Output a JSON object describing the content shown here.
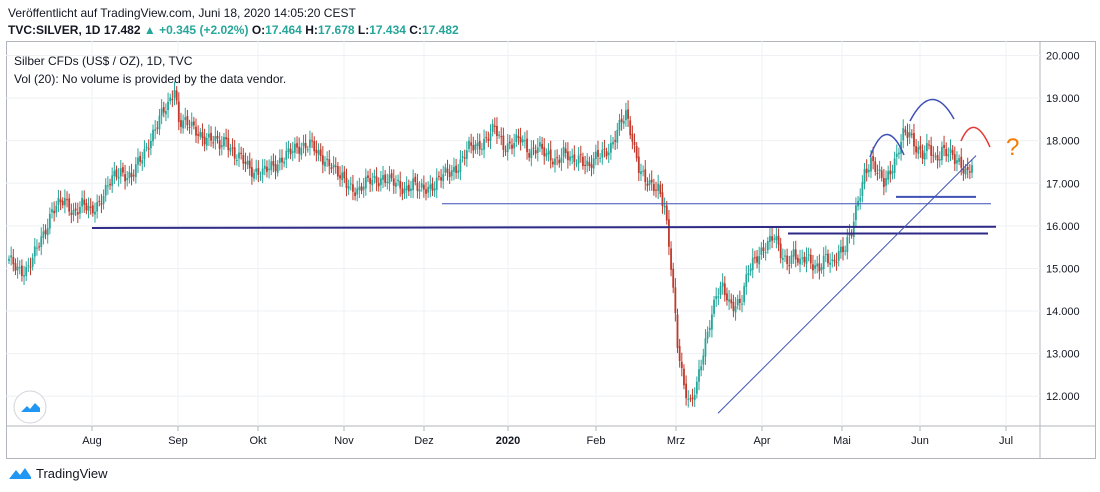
{
  "header": {
    "published": "Veröffentlicht auf TradingView.com, Juni 18, 2020 14:05:20 CEST",
    "symbol": "TVC:SILVER, 1D",
    "last": "17.482",
    "change": "▲ +0.345 (+2.02%)",
    "o_label": "O:",
    "o": "17.464",
    "h_label": "H:",
    "h": "17.678",
    "l_label": "L:",
    "l": "17.434",
    "c_label": "C:",
    "c": "17.482"
  },
  "legend": {
    "title": "Silber CFDs (US$ / OZ), 1D, TVC",
    "volume": "Vol (20): No volume is provided by the data vendor."
  },
  "annotation_mark": "?",
  "footer": {
    "brand": "TradingView"
  },
  "colors": {
    "up": "#26a69a",
    "down": "#c0392b",
    "trend": "#3f51b5",
    "arc_red": "#e53935",
    "question": "#f57c00"
  },
  "chart_data": {
    "type": "candlestick",
    "ylim": [
      11.3,
      20.2
    ],
    "y_ticks": [
      "20.000",
      "19.000",
      "18.000",
      "17.000",
      "16.000",
      "15.000",
      "14.000",
      "13.000",
      "12.000"
    ],
    "x_ticks": [
      "Aug",
      "Sep",
      "Okt",
      "Nov",
      "Dez",
      "2020",
      "Feb",
      "Mrz",
      "Apr",
      "Mai",
      "Jun",
      "Jul"
    ],
    "bold_x_tick": "2020",
    "grid": true,
    "key_points": [
      {
        "period": "Jul 2019 start",
        "close": 15.2
      },
      {
        "period": "Early Sep 2019 peak",
        "high": 19.6
      },
      {
        "period": "Jan 2020",
        "close": 18.1
      },
      {
        "period": "Feb 2020 high",
        "high": 18.9
      },
      {
        "period": "Mid Mar 2020 low",
        "low": 11.64
      },
      {
        "period": "Jun 2020 high",
        "high": 18.3
      },
      {
        "period": "Last",
        "close": 17.482
      }
    ],
    "horizontal_levels": [
      15.95,
      16.52,
      15.82,
      16.68
    ]
  }
}
